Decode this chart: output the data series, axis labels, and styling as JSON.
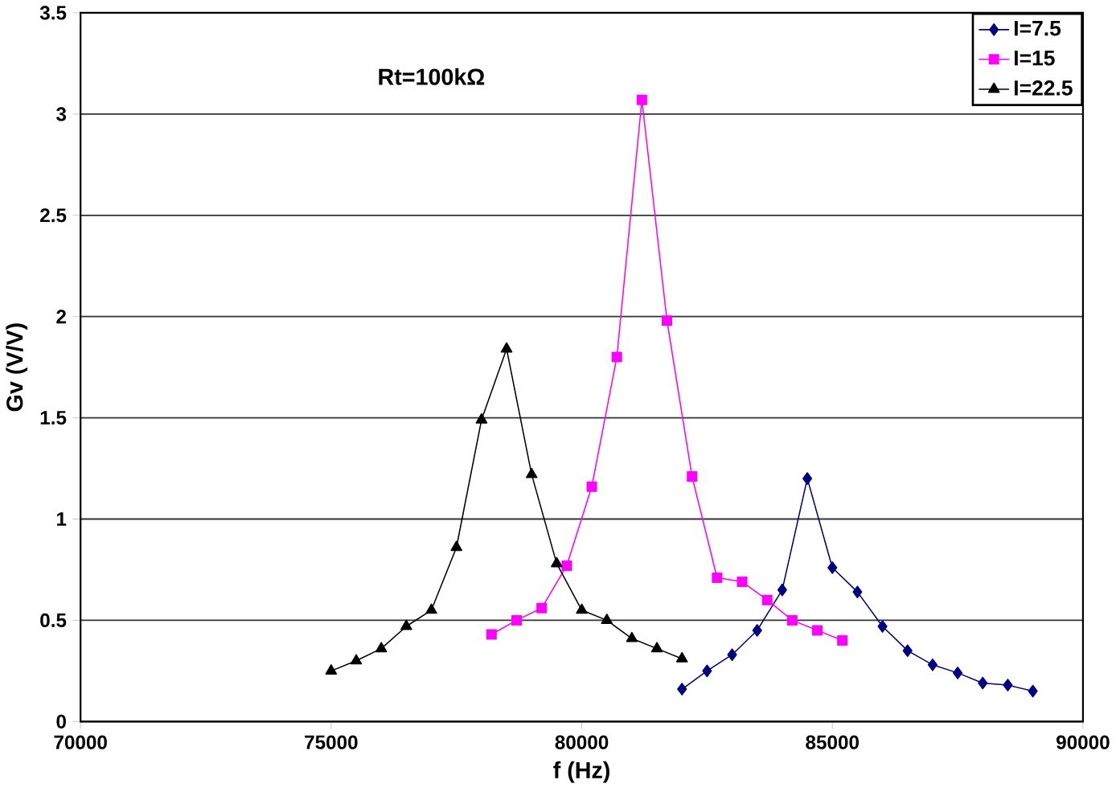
{
  "chart_data": {
    "type": "line",
    "xlabel": "f (Hz)",
    "ylabel": "Gv (V/V)",
    "annotations": [
      "Rt=100kΩ"
    ],
    "xlim": [
      70000,
      90000
    ],
    "xticks": [
      70000,
      75000,
      80000,
      85000,
      90000
    ],
    "ylim": [
      0,
      3.5
    ],
    "yticks": [
      0,
      0.5,
      1,
      1.5,
      2,
      2.5,
      3,
      3.5
    ],
    "grid": "y",
    "legend": "top right",
    "line_style": "solid",
    "series": [
      {
        "name": "I=7.5",
        "color": "#000080",
        "marker": "diamond",
        "x": [
          82000,
          82500,
          83000,
          83500,
          84000,
          84500,
          85000,
          85500,
          86000,
          86500,
          87000,
          87500,
          88000,
          88500,
          89000
        ],
        "values": [
          0.16,
          0.25,
          0.33,
          0.45,
          0.65,
          1.2,
          0.76,
          0.64,
          0.47,
          0.35,
          0.28,
          0.24,
          0.19,
          0.18,
          0.15
        ]
      },
      {
        "name": "I=15",
        "color": "#ff00ff",
        "marker": "square",
        "x": [
          78200,
          78700,
          79200,
          79700,
          80200,
          80700,
          81200,
          81700,
          82200,
          82700,
          83200,
          83700,
          84200,
          84700,
          85200
        ],
        "values": [
          0.43,
          0.5,
          0.56,
          0.77,
          1.16,
          1.8,
          3.07,
          1.98,
          1.21,
          0.71,
          0.69,
          0.6,
          0.5,
          0.45,
          0.4
        ]
      },
      {
        "name": "I=22.5",
        "color": "#000000",
        "marker": "triangle",
        "x": [
          75000,
          75500,
          76000,
          76500,
          77000,
          77500,
          78000,
          78500,
          79000,
          79500,
          80000,
          80500,
          81000,
          81500,
          82000
        ],
        "values": [
          0.25,
          0.3,
          0.36,
          0.47,
          0.55,
          0.86,
          1.49,
          1.84,
          1.22,
          0.78,
          0.55,
          0.5,
          0.41,
          0.36,
          0.31
        ]
      }
    ]
  }
}
